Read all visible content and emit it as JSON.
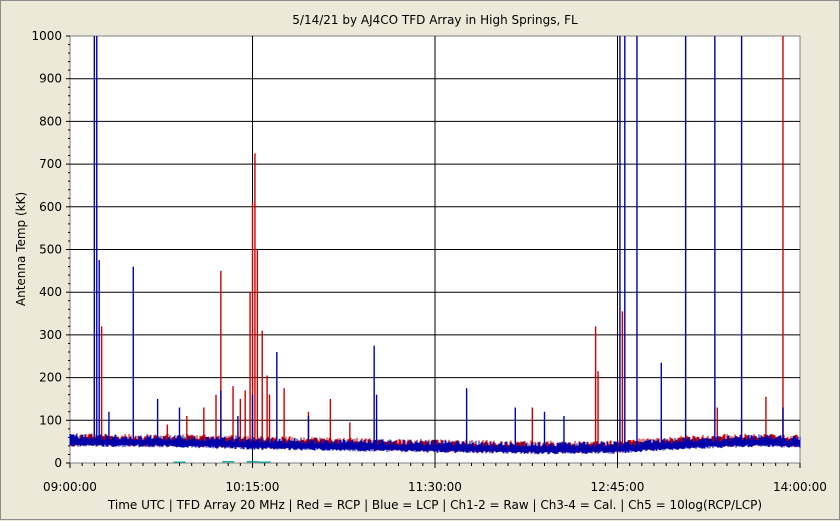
{
  "window": {
    "background": "#ece9d8",
    "plot_background": "#ffffff"
  },
  "chart_data": {
    "type": "line",
    "title": "5/14/21  by  AJ4CO TFD Array  in  High Springs, FL",
    "ylabel": "Antenna Temp (kK)",
    "footer": "Time UTC | TFD Array 20 MHz | Red = RCP | Blue = LCP | Ch1-2 = Raw | Ch3-4 = Cal. | Ch5 = 10log(RCP/LCP)",
    "ylim": [
      0,
      1000
    ],
    "xlim": [
      "09:00:00",
      "14:00:00"
    ],
    "y_ticks": [
      "0",
      "100",
      "200",
      "300",
      "400",
      "500",
      "600",
      "700",
      "800",
      "900",
      "1000"
    ],
    "x_ticks": [
      "09:00:00",
      "10:15:00",
      "11:30:00",
      "12:45:00",
      "14:00:00"
    ],
    "grid": true,
    "colors": {
      "RCP": "#cc0000",
      "LCP": "#0000aa",
      "ratio": "#00a0a0"
    },
    "series": [
      {
        "name": "RCP",
        "baseline": [
          [
            "09:00:00",
            52
          ],
          [
            "09:45:00",
            50
          ],
          [
            "10:15:00",
            46
          ],
          [
            "10:45:00",
            43
          ],
          [
            "11:30:00",
            38
          ],
          [
            "12:15:00",
            34
          ],
          [
            "12:45:00",
            36
          ],
          [
            "13:15:00",
            48
          ],
          [
            "13:45:00",
            52
          ],
          [
            "14:00:00",
            48
          ]
        ],
        "spikes": [
          [
            "09:10:00",
            195
          ],
          [
            "09:13:00",
            320
          ],
          [
            "09:40:00",
            90
          ],
          [
            "09:48:00",
            110
          ],
          [
            "09:55:00",
            130
          ],
          [
            "10:00:00",
            160
          ],
          [
            "10:02:00",
            450
          ],
          [
            "10:07:00",
            180
          ],
          [
            "10:10:00",
            150
          ],
          [
            "10:12:00",
            170
          ],
          [
            "10:14:00",
            400
          ],
          [
            "10:15:00",
            610
          ],
          [
            "10:16:00",
            725
          ],
          [
            "10:17:00",
            500
          ],
          [
            "10:19:00",
            310
          ],
          [
            "10:21:00",
            205
          ],
          [
            "10:22:00",
            160
          ],
          [
            "10:28:00",
            175
          ],
          [
            "10:38:00",
            120
          ],
          [
            "10:47:00",
            150
          ],
          [
            "10:55:00",
            95
          ],
          [
            "12:10:00",
            130
          ],
          [
            "12:36:00",
            320
          ],
          [
            "12:37:00",
            215
          ],
          [
            "12:47:00",
            355
          ],
          [
            "13:26:00",
            130
          ],
          [
            "13:46:00",
            155
          ],
          [
            "13:53:00",
            1000
          ]
        ]
      },
      {
        "name": "LCP",
        "baseline": [
          [
            "09:00:00",
            50
          ],
          [
            "09:45:00",
            48
          ],
          [
            "10:15:00",
            43
          ],
          [
            "10:45:00",
            40
          ],
          [
            "11:30:00",
            36
          ],
          [
            "12:15:00",
            32
          ],
          [
            "12:45:00",
            34
          ],
          [
            "13:15:00",
            44
          ],
          [
            "13:45:00",
            50
          ],
          [
            "14:00:00",
            46
          ]
        ],
        "spikes": [
          [
            "09:10:00",
            1000
          ],
          [
            "09:11:00",
            1000
          ],
          [
            "09:12:00",
            475
          ],
          [
            "09:16:00",
            120
          ],
          [
            "09:26:00",
            460
          ],
          [
            "09:36:00",
            150
          ],
          [
            "09:45:00",
            130
          ],
          [
            "10:02:00",
            170
          ],
          [
            "10:09:00",
            110
          ],
          [
            "10:15:00",
            160
          ],
          [
            "10:25:00",
            260
          ],
          [
            "10:38:00",
            110
          ],
          [
            "11:05:00",
            275
          ],
          [
            "11:06:00",
            160
          ],
          [
            "11:43:00",
            175
          ],
          [
            "12:03:00",
            130
          ],
          [
            "12:15:00",
            120
          ],
          [
            "12:23:00",
            110
          ],
          [
            "12:46:00",
            1000
          ],
          [
            "12:48:00",
            1000
          ],
          [
            "12:53:00",
            1000
          ],
          [
            "13:03:00",
            235
          ],
          [
            "13:13:00",
            1000
          ],
          [
            "13:25:00",
            1000
          ],
          [
            "13:36:00",
            1000
          ],
          [
            "13:53:00",
            130
          ]
        ]
      },
      {
        "name": "Ch5",
        "values": [
          [
            "09:45:00",
            2
          ],
          [
            "10:05:00",
            3
          ],
          [
            "10:15:00",
            3
          ],
          [
            "10:20:00",
            2
          ]
        ]
      }
    ]
  }
}
